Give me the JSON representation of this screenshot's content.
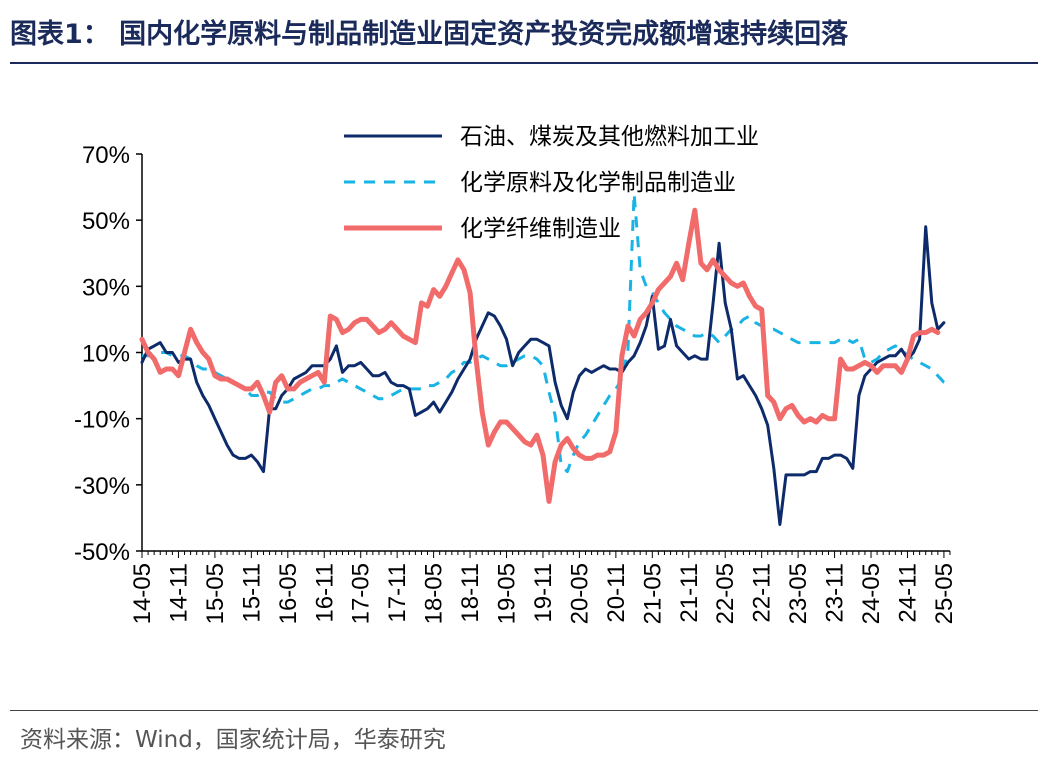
{
  "header": {
    "title": "图表1：  国内化学原料与制品制造业固定资产投资完成额增速持续回落"
  },
  "footer": {
    "source": "资料来源：Wind，国家统计局，华泰研究"
  },
  "colors": {
    "series_1": "#0d2b6b",
    "series_2": "#19b4e6",
    "series_3": "#f26b6b",
    "rule": "#1a2a5a"
  },
  "chart_data": {
    "type": "line",
    "ylim": [
      -50,
      70
    ],
    "y_ticks": [
      "70%",
      "50%",
      "30%",
      "10%",
      "-10%",
      "-30%",
      "-50%"
    ],
    "y_tick_values": [
      70,
      50,
      30,
      10,
      -10,
      -30,
      -50
    ],
    "x_ticks": [
      "14-05",
      "14-11",
      "15-05",
      "15-11",
      "16-05",
      "16-11",
      "17-05",
      "17-11",
      "18-05",
      "18-11",
      "19-05",
      "19-11",
      "20-05",
      "20-11",
      "21-05",
      "21-11",
      "22-05",
      "22-11",
      "23-05",
      "23-11",
      "24-05",
      "24-11",
      "25-05"
    ],
    "x_months": [
      "14-05",
      "14-06",
      "14-07",
      "14-08",
      "14-09",
      "14-10",
      "14-11",
      "14-12",
      "15-01",
      "15-02",
      "15-03",
      "15-04",
      "15-05",
      "15-06",
      "15-07",
      "15-08",
      "15-09",
      "15-10",
      "15-11",
      "15-12",
      "16-01",
      "16-02",
      "16-03",
      "16-04",
      "16-05",
      "16-06",
      "16-07",
      "16-08",
      "16-09",
      "16-10",
      "16-11",
      "16-12",
      "17-01",
      "17-02",
      "17-03",
      "17-04",
      "17-05",
      "17-06",
      "17-07",
      "17-08",
      "17-09",
      "17-10",
      "17-11",
      "17-12",
      "18-01",
      "18-02",
      "18-03",
      "18-04",
      "18-05",
      "18-06",
      "18-07",
      "18-08",
      "18-09",
      "18-10",
      "18-11",
      "18-12",
      "19-01",
      "19-02",
      "19-03",
      "19-04",
      "19-05",
      "19-06",
      "19-07",
      "19-08",
      "19-09",
      "19-10",
      "19-11",
      "19-12",
      "20-01",
      "20-02",
      "20-03",
      "20-04",
      "20-05",
      "20-06",
      "20-07",
      "20-08",
      "20-09",
      "20-10",
      "20-11",
      "20-12",
      "21-01",
      "21-02",
      "21-03",
      "21-04",
      "21-05",
      "21-06",
      "21-07",
      "21-08",
      "21-09",
      "21-10",
      "21-11",
      "21-12",
      "22-01",
      "22-02",
      "22-03",
      "22-04",
      "22-05",
      "22-06",
      "22-07",
      "22-08",
      "22-09",
      "22-10",
      "22-11",
      "22-12",
      "23-01",
      "23-02",
      "23-03",
      "23-04",
      "23-05",
      "23-06",
      "23-07",
      "23-08",
      "23-09",
      "23-10",
      "23-11",
      "23-12",
      "24-01",
      "24-02",
      "24-03",
      "24-04",
      "24-05",
      "24-06",
      "24-07",
      "24-08",
      "24-09",
      "24-10",
      "24-11",
      "24-12",
      "25-01",
      "25-02",
      "25-03",
      "25-04",
      "25-05",
      "25-06"
    ],
    "legend_position": "top-right",
    "grid": false,
    "series": [
      {
        "name": "石油、煤炭及其他燃料加工业",
        "style": "solid",
        "values": [
          7,
          11,
          12,
          13,
          10,
          10,
          7,
          8,
          8,
          1,
          -3,
          -6,
          -10,
          -14,
          -18,
          -21,
          -22,
          -22,
          -21,
          -23,
          -26,
          -7,
          -7,
          -3,
          -1,
          2,
          3,
          4,
          6,
          6,
          6,
          8,
          12,
          4,
          6,
          6,
          7,
          5,
          3,
          3,
          4,
          1,
          0,
          0,
          -1,
          -9,
          -8,
          -7,
          -5,
          -8,
          -5,
          -2,
          2,
          5,
          8,
          14,
          18,
          22,
          21,
          18,
          14,
          6,
          10,
          12,
          14,
          14,
          13,
          12,
          1,
          -6,
          -10,
          -2,
          3,
          5,
          4,
          5,
          6,
          5,
          5,
          4,
          7,
          9,
          13,
          18,
          27,
          11,
          12,
          20,
          12,
          10,
          8,
          9,
          8,
          8,
          25,
          43,
          25,
          17,
          2,
          3,
          0,
          -3,
          -7,
          -12,
          -25,
          -42,
          -27,
          -27,
          -27,
          -27,
          -26,
          -26,
          -22,
          -22,
          -21,
          -21,
          -22,
          -25,
          -3,
          3,
          5,
          7,
          8,
          9,
          9,
          11,
          8,
          10,
          14,
          48,
          25,
          17,
          19
        ]
      },
      {
        "name": "化学原料及化学制品制造业",
        "style": "dashed",
        "values": [
          9,
          9,
          10,
          10,
          10,
          9,
          9,
          9,
          8,
          6,
          5,
          5,
          4,
          3,
          2,
          1,
          0,
          -1,
          -3,
          -3,
          -2,
          -2,
          -4,
          -5,
          -5,
          -4,
          -3,
          -2,
          -1,
          -1,
          0,
          0,
          1,
          2,
          1,
          0,
          -1,
          -2,
          -3,
          -4,
          -4,
          -3,
          -2,
          -1,
          -1,
          -1,
          -1,
          0,
          0,
          1,
          2,
          4,
          5,
          7,
          7,
          8,
          9,
          8,
          7,
          6,
          6,
          7,
          8,
          9,
          9,
          8,
          6,
          -2,
          -9,
          -24,
          -26,
          -21,
          -17,
          -15,
          -12,
          -9,
          -6,
          -3,
          -1,
          2,
          11,
          58,
          35,
          30,
          28,
          25,
          22,
          20,
          18,
          17,
          16,
          15,
          15,
          16,
          15,
          13,
          15,
          17,
          18,
          20,
          21,
          19,
          18,
          17,
          17,
          16,
          15,
          14,
          13,
          13,
          13,
          13,
          13,
          13,
          13,
          14,
          14,
          13,
          14,
          8,
          7,
          8,
          10,
          11,
          12,
          11,
          9,
          8,
          7,
          6,
          5,
          3,
          1,
          0
        ]
      },
      {
        "name": "化学纤维制造业",
        "style": "solid",
        "values": [
          14,
          10,
          8,
          4,
          5,
          5,
          3,
          10,
          17,
          13,
          10,
          8,
          3,
          2,
          2,
          1,
          0,
          -1,
          -1,
          1,
          -3,
          -8,
          1,
          3,
          -1,
          -1,
          1,
          2,
          3,
          4,
          1,
          21,
          20,
          16,
          17,
          19,
          20,
          20,
          18,
          16,
          17,
          19,
          17,
          15,
          14,
          13,
          25,
          24,
          29,
          27,
          30,
          34,
          38,
          35,
          28,
          8,
          -8,
          -18,
          -14,
          -11,
          -11,
          -13,
          -15,
          -17,
          -18,
          -15,
          -21,
          -35,
          -23,
          -18,
          -16,
          -19,
          -21,
          -22,
          -22,
          -21,
          -21,
          -20,
          -14,
          9,
          18,
          15,
          20,
          22,
          25,
          29,
          31,
          33,
          37,
          32,
          43,
          53,
          37,
          35,
          38,
          35,
          33,
          31,
          30,
          31,
          27,
          24,
          23,
          -3,
          -5,
          -10,
          -7,
          -6,
          -9,
          -11,
          -10,
          -11,
          -9,
          -10,
          -10,
          8,
          5,
          5,
          6,
          7,
          6,
          4,
          6,
          6,
          6,
          4,
          8,
          15,
          16,
          16,
          17,
          16
        ]
      }
    ]
  }
}
